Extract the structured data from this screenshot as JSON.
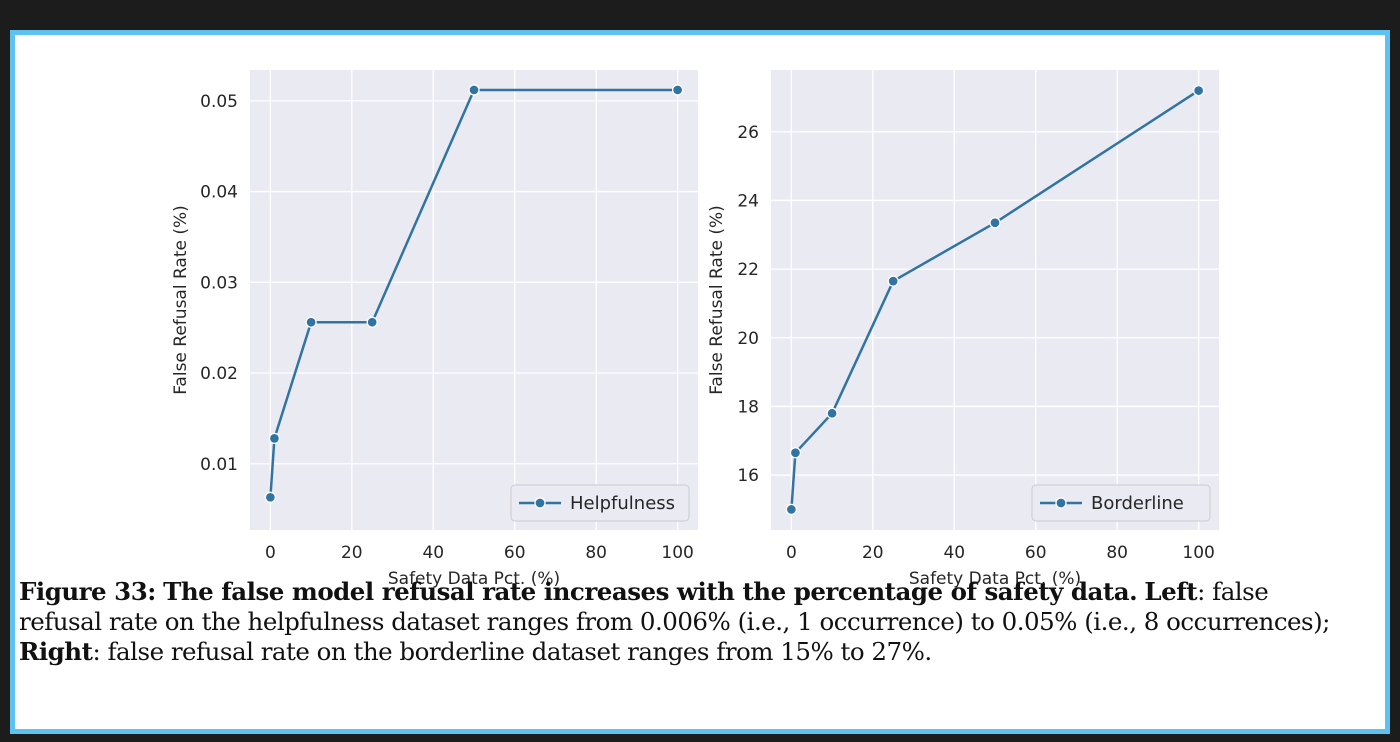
{
  "chart_data": [
    {
      "type": "line",
      "title": "",
      "xlabel": "Safety Data Pct. (%)",
      "ylabel": "False Refusal Rate (%)",
      "xlim": [
        -5,
        105
      ],
      "ylim": [
        0.0027,
        0.0534
      ],
      "xticks": [
        0,
        20,
        40,
        60,
        80,
        100
      ],
      "xtick_labels": [
        "0",
        "20",
        "40",
        "60",
        "80",
        "100"
      ],
      "yticks": [
        0.01,
        0.02,
        0.03,
        0.04,
        0.05
      ],
      "ytick_labels": [
        "0.01",
        "0.02",
        "0.03",
        "0.04",
        "0.05"
      ],
      "grid": true,
      "legend_position": "bottom-right",
      "series": [
        {
          "name": "Helpfulness",
          "color": "#3274a1",
          "x": [
            0,
            1,
            10,
            25,
            50,
            100
          ],
          "y": [
            0.0063,
            0.0128,
            0.0256,
            0.0256,
            0.0512,
            0.0512
          ]
        }
      ]
    },
    {
      "type": "line",
      "title": "",
      "xlabel": "Safety Data Pct. (%)",
      "ylabel": "False Refusal Rate (%)",
      "xlim": [
        -5,
        105
      ],
      "ylim": [
        14.4,
        27.8
      ],
      "xticks": [
        0,
        20,
        40,
        60,
        80,
        100
      ],
      "xtick_labels": [
        "0",
        "20",
        "40",
        "60",
        "80",
        "100"
      ],
      "yticks": [
        16,
        18,
        20,
        22,
        24,
        26
      ],
      "ytick_labels": [
        "16",
        "18",
        "20",
        "22",
        "24",
        "26"
      ],
      "grid": true,
      "legend_position": "bottom-right",
      "series": [
        {
          "name": "Borderline",
          "color": "#3274a1",
          "x": [
            0,
            1,
            10,
            25,
            50,
            100
          ],
          "y": [
            15.0,
            16.65,
            17.8,
            21.65,
            23.35,
            27.2
          ]
        }
      ]
    }
  ],
  "caption": {
    "figure_label": "Figure 33:",
    "bold_sentence": "The false model refusal rate increases with the percentage of safety data.",
    "left_label": "Left",
    "left_text": ": false refusal rate on the helpfulness dataset ranges from 0.006% (i.e., 1 occurrence) to 0.05% (i.e., 8 occurrences);",
    "right_label": "Right",
    "right_text": ": false refusal rate on the borderline dataset ranges from 15% to 27%."
  },
  "colors": {
    "plot_background": "#eaeaf2",
    "grid": "#ffffff",
    "line": "#3274a1",
    "border": "#5ec2f1",
    "page_background": "#1c1c1c"
  }
}
